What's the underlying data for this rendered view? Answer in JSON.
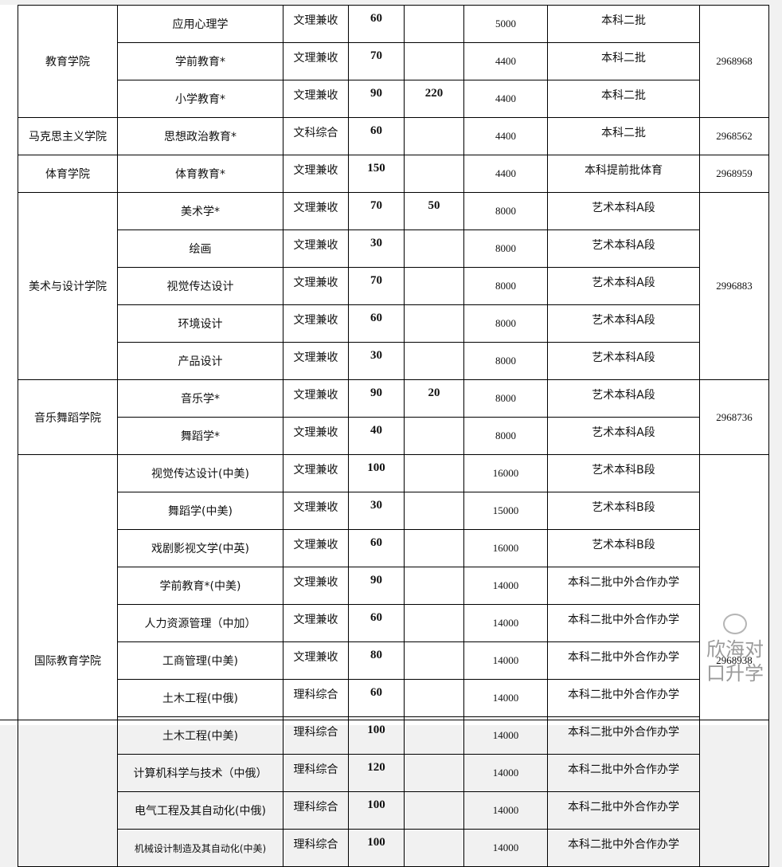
{
  "groups": [
    {
      "college": "教育学院",
      "phone": "2968968",
      "rows": [
        {
          "major": "应用心理学",
          "type": "文理兼收",
          "num": "60",
          "extra": "",
          "fee": "5000",
          "batch": "本科二批"
        },
        {
          "major": "学前教育*",
          "type": "文理兼收",
          "num": "70",
          "extra": "",
          "fee": "4400",
          "batch": "本科二批"
        },
        {
          "major": "小学教育*",
          "type": "文理兼收",
          "num": "90",
          "extra": "220",
          "fee": "4400",
          "batch": "本科二批"
        }
      ]
    },
    {
      "college": "马克思主义学院",
      "phone": "2968562",
      "rows": [
        {
          "major": "思想政治教育*",
          "type": "文科综合",
          "num": "60",
          "extra": "",
          "fee": "4400",
          "batch": "本科二批"
        }
      ]
    },
    {
      "college": "体育学院",
      "phone": "2968959",
      "rows": [
        {
          "major": "体育教育*",
          "type": "文理兼收",
          "num": "150",
          "extra": "",
          "fee": "4400",
          "batch": "本科提前批体育"
        }
      ]
    },
    {
      "college": "美术与设计学院",
      "phone": "2996883",
      "rows": [
        {
          "major": "美术学*",
          "type": "文理兼收",
          "num": "70",
          "extra": "50",
          "fee": "8000",
          "batch": "艺术本科A段"
        },
        {
          "major": "绘画",
          "type": "文理兼收",
          "num": "30",
          "extra": "",
          "fee": "8000",
          "batch": "艺术本科A段"
        },
        {
          "major": "视觉传达设计",
          "type": "文理兼收",
          "num": "70",
          "extra": "",
          "fee": "8000",
          "batch": "艺术本科A段"
        },
        {
          "major": "环境设计",
          "type": "文理兼收",
          "num": "60",
          "extra": "",
          "fee": "8000",
          "batch": "艺术本科A段"
        },
        {
          "major": "产品设计",
          "type": "文理兼收",
          "num": "30",
          "extra": "",
          "fee": "8000",
          "batch": "艺术本科A段"
        }
      ]
    },
    {
      "college": "音乐舞蹈学院",
      "phone": "2968736",
      "rows": [
        {
          "major": "音乐学*",
          "type": "文理兼收",
          "num": "90",
          "extra": "20",
          "fee": "8000",
          "batch": "艺术本科A段"
        },
        {
          "major": "舞蹈学*",
          "type": "文理兼收",
          "num": "40",
          "extra": "",
          "fee": "8000",
          "batch": "艺术本科A段"
        }
      ]
    },
    {
      "college": "国际教育学院",
      "phone": "2968938",
      "rows": [
        {
          "major": "视觉传达设计(中美)",
          "type": "文理兼收",
          "num": "100",
          "extra": "",
          "fee": "16000",
          "batch": "艺术本科B段"
        },
        {
          "major": "舞蹈学(中美)",
          "type": "文理兼收",
          "num": "30",
          "extra": "",
          "fee": "15000",
          "batch": "艺术本科B段"
        },
        {
          "major": "戏剧影视文学(中英)",
          "type": "文理兼收",
          "num": "60",
          "extra": "",
          "fee": "16000",
          "batch": "艺术本科B段"
        },
        {
          "major": "学前教育*(中美)",
          "type": "文理兼收",
          "num": "90",
          "extra": "",
          "fee": "14000",
          "batch": "本科二批中外合作办学"
        },
        {
          "major": "人力资源管理（中加）",
          "type": "文理兼收",
          "num": "60",
          "extra": "",
          "fee": "14000",
          "batch": "本科二批中外合作办学"
        },
        {
          "major": "工商管理(中美)",
          "type": "文理兼收",
          "num": "80",
          "extra": "",
          "fee": "14000",
          "batch": "本科二批中外合作办学"
        },
        {
          "major": "土木工程(中俄)",
          "type": "理科综合",
          "num": "60",
          "extra": "",
          "fee": "14000",
          "batch": "本科二批中外合作办学"
        },
        {
          "major": "土木工程(中美)",
          "type": "理科综合",
          "num": "100",
          "extra": "",
          "fee": "14000",
          "batch": "本科二批中外合作办学"
        },
        {
          "major": "计算机科学与技术（中俄）",
          "type": "理科综合",
          "num": "120",
          "extra": "",
          "fee": "14000",
          "batch": "本科二批中外合作办学"
        },
        {
          "major": "电气工程及其自动化(中俄)",
          "type": "理科综合",
          "num": "100",
          "extra": "",
          "fee": "14000",
          "batch": "本科二批中外合作办学"
        },
        {
          "major": "机械设计制造及其自动化(中美)",
          "type": "理科综合",
          "num": "100",
          "extra": "",
          "fee": "14000",
          "batch": "本科二批中外合作办学"
        }
      ]
    }
  ],
  "watermark": "欣海对口升学"
}
